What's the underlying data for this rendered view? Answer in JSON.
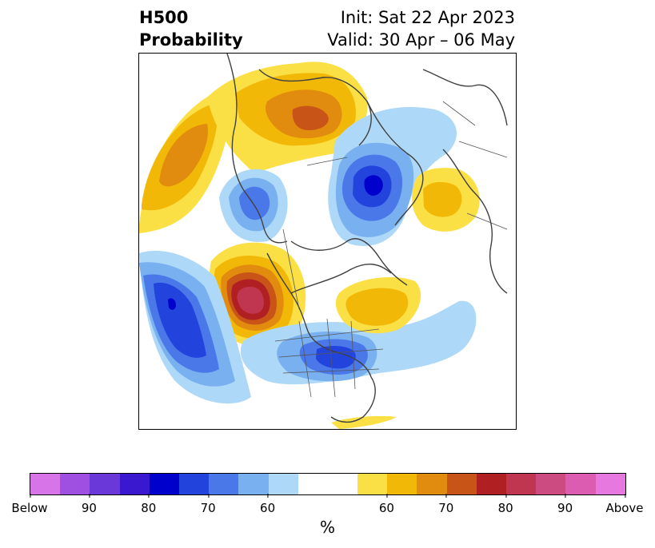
{
  "title": {
    "left_line1": "H500",
    "left_line2": "Probability",
    "right_line1": "Init: Sat 22 Apr 2023",
    "right_line2": "Valid: 30 Apr – 06 May"
  },
  "colorbar": {
    "colors": [
      "#d774e8",
      "#a050e0",
      "#6a38d8",
      "#3a18d0",
      "#0000cc",
      "#2244dd",
      "#4a78e8",
      "#78b0f0",
      "#aed8f8",
      "#ffffff",
      "#ffffff",
      "#fbe045",
      "#f2b807",
      "#e28c0f",
      "#c85418",
      "#b02022",
      "#c03650",
      "#cc4c82",
      "#dc5cb2",
      "#e678e0"
    ],
    "ticks": [
      {
        "label": "Below",
        "frac": 0.0
      },
      {
        "label": "90",
        "frac": 0.1
      },
      {
        "label": "80",
        "frac": 0.2
      },
      {
        "label": "70",
        "frac": 0.3
      },
      {
        "label": "60",
        "frac": 0.4
      },
      {
        "label": "60",
        "frac": 0.6
      },
      {
        "label": "70",
        "frac": 0.7
      },
      {
        "label": "80",
        "frac": 0.8
      },
      {
        "label": "90",
        "frac": 0.9
      },
      {
        "label": "Above",
        "frac": 1.0
      }
    ],
    "unit": "%"
  },
  "map": {
    "features": [
      {
        "name": "pacific-above-anomaly",
        "category": "above",
        "levels": [
          "#f2b807",
          "#e28c0f"
        ]
      },
      {
        "name": "arctic-siberia-above-anomaly",
        "category": "above",
        "levels": [
          "#fbe045",
          "#f2b807",
          "#e28c0f",
          "#c85418"
        ]
      },
      {
        "name": "scandinavia-below-anomaly",
        "category": "below",
        "levels": [
          "#aed8f8",
          "#78b0f0",
          "#4a78e8",
          "#2244dd",
          "#0000cc"
        ]
      },
      {
        "name": "eastern-europe-above-anomaly",
        "category": "above",
        "levels": [
          "#fbe045",
          "#f2b807"
        ]
      },
      {
        "name": "west-coast-above-anomaly",
        "category": "above",
        "levels": [
          "#fbe045",
          "#f2b807",
          "#e28c0f",
          "#c85418",
          "#b02022",
          "#c03650"
        ]
      },
      {
        "name": "east-pacific-below-anomaly",
        "category": "below",
        "levels": [
          "#aed8f8",
          "#78b0f0",
          "#4a78e8",
          "#2244dd",
          "#0000cc"
        ]
      },
      {
        "name": "eastern-us-below-anomaly",
        "category": "below",
        "levels": [
          "#aed8f8",
          "#78b0f0",
          "#4a78e8",
          "#2244dd"
        ]
      },
      {
        "name": "hudson-bay-above-anomaly",
        "category": "above",
        "levels": [
          "#fbe045",
          "#f2b807"
        ]
      }
    ]
  }
}
